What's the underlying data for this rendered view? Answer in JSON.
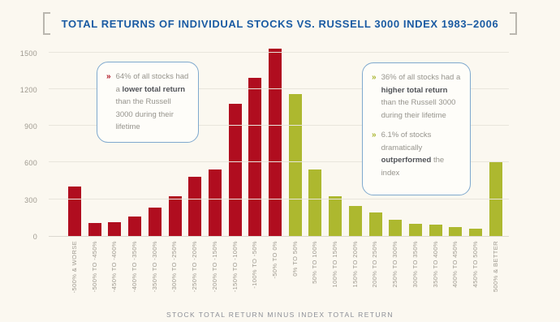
{
  "chart_data": {
    "type": "bar",
    "title": "TOTAL RETURNS OF INDIVIDUAL STOCKS VS. RUSSELL 3000 INDEX 1983–2006",
    "xlabel": "STOCK TOTAL RETURN MINUS INDEX TOTAL RETURN",
    "ylabel": "",
    "ylim": [
      0,
      1550
    ],
    "yticks": [
      0,
      300,
      600,
      900,
      1200,
      1500
    ],
    "grid": true,
    "legend": false,
    "categories": [
      "-500% & WORSE",
      "-500% TO -450%",
      "-450% TO -400%",
      "-400% TO -350%",
      "-350% TO -300%",
      "-300% TO -250%",
      "-250% TO -200%",
      "-200% TO -150%",
      "-150% TO -100%",
      "-100% TO -50%",
      "-50% TO 0%",
      "0% TO 50%",
      "50% TO 100%",
      "100% TO 150%",
      "150% TO 200%",
      "200% TO 250%",
      "250% TO 300%",
      "300% TO 350%",
      "350% TO 400%",
      "400% TO 450%",
      "450% TO 500%",
      "500% & BETTER"
    ],
    "values": [
      405,
      105,
      115,
      160,
      230,
      325,
      485,
      545,
      1080,
      1290,
      1530,
      1160,
      545,
      325,
      245,
      190,
      135,
      100,
      90,
      75,
      60,
      600
    ],
    "groups": [
      "underperform",
      "underperform",
      "underperform",
      "underperform",
      "underperform",
      "underperform",
      "underperform",
      "underperform",
      "underperform",
      "underperform",
      "underperform",
      "outperform",
      "outperform",
      "outperform",
      "outperform",
      "outperform",
      "outperform",
      "outperform",
      "outperform",
      "outperform",
      "outperform",
      "outperform"
    ],
    "group_colors": {
      "underperform": "#b00d1f",
      "outperform": "#adb82f"
    }
  },
  "callouts": {
    "left": {
      "items": [
        {
          "marker": "»",
          "marker_color": "#b01220",
          "segments": [
            {
              "text": "64% of all stocks had a ",
              "bold": false
            },
            {
              "text": "lower total return",
              "bold": true
            },
            {
              "text": " than the Russell 3000 during their lifetime",
              "bold": false
            }
          ]
        }
      ]
    },
    "right": {
      "items": [
        {
          "marker": "»",
          "marker_color": "#a9b52f",
          "segments": [
            {
              "text": "36% of all stocks had a ",
              "bold": false
            },
            {
              "text": "higher total return",
              "bold": true
            },
            {
              "text": " than the Russell 3000 during their lifetime",
              "bold": false
            }
          ]
        },
        {
          "marker": "»",
          "marker_color": "#a9b52f",
          "segments": [
            {
              "text": "6.1% of stocks dramatically ",
              "bold": false
            },
            {
              "text": "outperformed",
              "bold": true
            },
            {
              "text": " the index",
              "bold": false
            }
          ]
        }
      ]
    }
  },
  "theme": {
    "background": "#fbf8f0",
    "title_color": "#1a5ba3",
    "bracket_color": "#bab7af",
    "gridline_color": "#e8e5dc",
    "axis_text_color": "#9e998f",
    "caption_color": "#8b8e96",
    "callout_border": "#7fa9ce"
  }
}
